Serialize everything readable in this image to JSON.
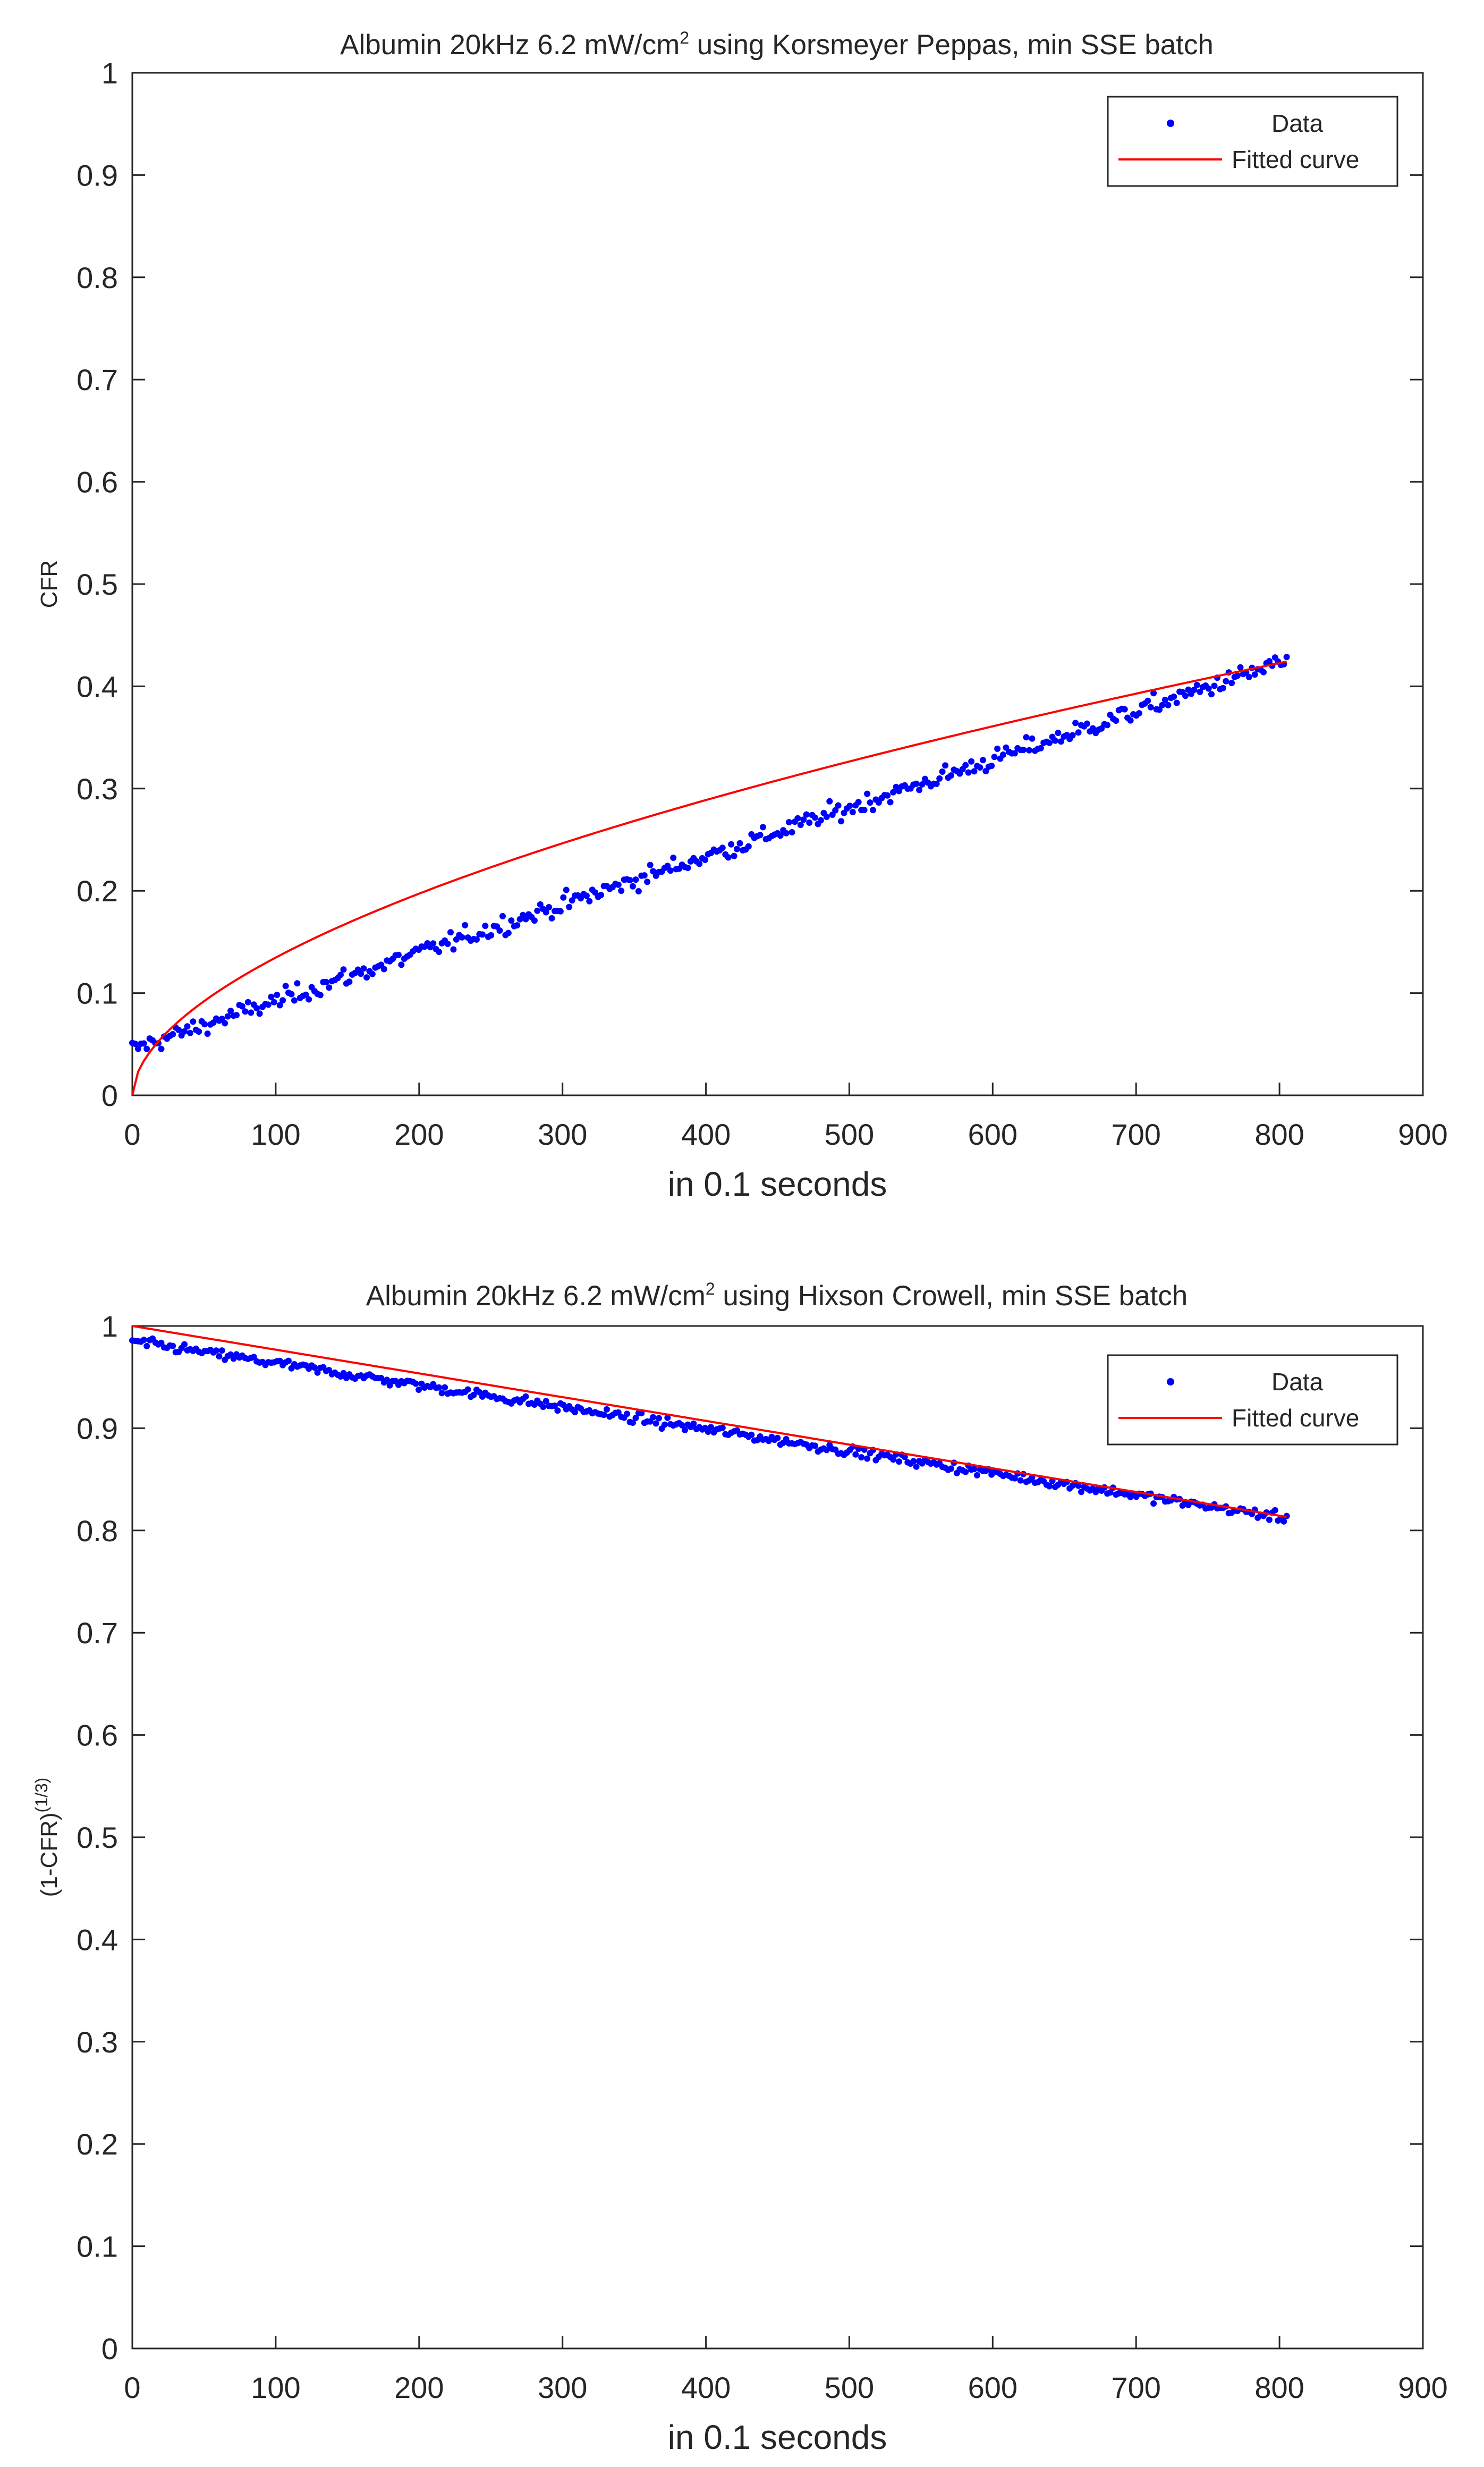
{
  "colors": {
    "data": "#0000ff",
    "fit": "#ff0000",
    "axis": "#262626",
    "background": "#ffffff"
  },
  "chart_data": [
    {
      "type": "scatter",
      "model": "korsmeyer-peppas",
      "title": {
        "prefix": "Albumin 20kHz 6.2 mW/cm",
        "sup": "2",
        "suffix": "  using Korsmeyer Peppas, min SSE batch"
      },
      "xlabel": "in 0.1 seconds",
      "ylabel": {
        "main": "CFR",
        "sup": ""
      },
      "xlim": [
        0,
        900
      ],
      "ylim": [
        0,
        1
      ],
      "xticks": [
        "0",
        "100",
        "200",
        "300",
        "400",
        "500",
        "600",
        "700",
        "800",
        "900"
      ],
      "yticks": [
        "0",
        "0.1",
        "0.2",
        "0.3",
        "0.4",
        "0.5",
        "0.6",
        "0.7",
        "0.8",
        "0.9",
        "1"
      ],
      "legend": {
        "position": "top-right",
        "entries": [
          "Data",
          "Fitted curve"
        ]
      },
      "series": [
        {
          "name": "Data",
          "style": "points",
          "x_range": [
            0,
            805
          ],
          "count": 400,
          "trend_start": 0.045,
          "trend_end": 0.425,
          "noise": 0.008
        },
        {
          "name": "Fitted curve",
          "style": "line",
          "x_range": [
            0,
            805
          ],
          "k": 0.0107,
          "n": 0.55,
          "formula": "k*x^n"
        }
      ]
    },
    {
      "type": "scatter",
      "model": "hixson-crowell",
      "title": {
        "prefix": "Albumin 20kHz 6.2 mW/cm",
        "sup": "2",
        "suffix": "  using Hixson Crowell, min SSE batch"
      },
      "xlabel": "in 0.1 seconds",
      "ylabel": {
        "main": "(1-CFR)",
        "sup": "(1/3)"
      },
      "xlim": [
        0,
        900
      ],
      "ylim": [
        0,
        1
      ],
      "xticks": [
        "0",
        "100",
        "200",
        "300",
        "400",
        "500",
        "600",
        "700",
        "800",
        "900"
      ],
      "yticks": [
        "0",
        "0.1",
        "0.2",
        "0.3",
        "0.4",
        "0.5",
        "0.6",
        "0.7",
        "0.8",
        "0.9",
        "1"
      ],
      "legend": {
        "position": "top-right",
        "entries": [
          "Data",
          "Fitted curve"
        ]
      },
      "series": [
        {
          "name": "Data",
          "style": "points",
          "x_range": [
            0,
            805
          ],
          "count": 400,
          "trend_start": 0.985,
          "trend_end": 0.812,
          "noise": 0.004
        },
        {
          "name": "Fitted curve",
          "style": "line",
          "x_range": [
            0,
            805
          ],
          "a": 1.0,
          "b": 0.000232,
          "formula": "a - b*x"
        }
      ]
    }
  ]
}
